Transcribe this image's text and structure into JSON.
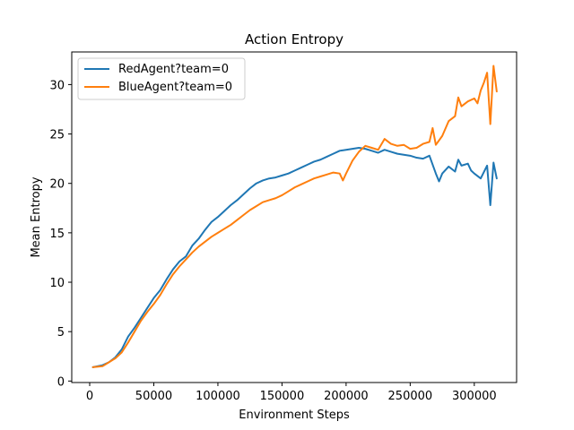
{
  "chart_data": {
    "type": "line",
    "title": "Action Entropy",
    "xlabel": "Environment Steps",
    "ylabel": "Mean Entropy",
    "xlim": [
      -14000,
      333000
    ],
    "ylim": [
      -0.15,
      33.3
    ],
    "xticks": [
      0,
      50000,
      100000,
      150000,
      200000,
      250000,
      300000
    ],
    "yticks": [
      0,
      5,
      10,
      15,
      20,
      25,
      30
    ],
    "grid": false,
    "legend_position": "upper-left",
    "series": [
      {
        "name": "RedAgent?team=0",
        "color": "#1f77b4",
        "x": [
          2500,
          10000,
          15000,
          20000,
          25000,
          30000,
          35000,
          40000,
          45000,
          50000,
          55000,
          60000,
          65000,
          70000,
          75000,
          80000,
          85000,
          90000,
          95000,
          100000,
          105000,
          110000,
          115000,
          120000,
          125000,
          130000,
          135000,
          140000,
          145000,
          150000,
          155000,
          160000,
          165000,
          170000,
          175000,
          180000,
          185000,
          190000,
          195000,
          200000,
          205000,
          210000,
          215000,
          220000,
          225000,
          230000,
          235000,
          240000,
          245000,
          250000,
          255000,
          260000,
          265000,
          270000,
          272500,
          275000,
          280000,
          285000,
          287500,
          290000,
          295000,
          297500,
          300000,
          305000,
          310000,
          312500,
          315000,
          317500
        ],
        "y": [
          1.4,
          1.6,
          1.9,
          2.4,
          3.2,
          4.5,
          5.4,
          6.4,
          7.4,
          8.4,
          9.2,
          10.3,
          11.3,
          12.1,
          12.6,
          13.7,
          14.4,
          15.3,
          16.1,
          16.6,
          17.2,
          17.8,
          18.3,
          18.9,
          19.5,
          20.0,
          20.3,
          20.5,
          20.6,
          20.8,
          21.0,
          21.3,
          21.6,
          21.9,
          22.2,
          22.4,
          22.7,
          23.0,
          23.3,
          23.4,
          23.5,
          23.6,
          23.5,
          23.3,
          23.1,
          23.4,
          23.2,
          23.0,
          22.9,
          22.8,
          22.6,
          22.5,
          22.8,
          21.0,
          20.2,
          21.0,
          21.7,
          21.2,
          22.4,
          21.8,
          22.0,
          21.3,
          21.0,
          20.5,
          21.8,
          17.8,
          22.1,
          20.5
        ]
      },
      {
        "name": "BlueAgent?team=0",
        "color": "#ff7f0e",
        "x": [
          2500,
          10000,
          15000,
          20000,
          25000,
          30000,
          35000,
          40000,
          45000,
          50000,
          55000,
          60000,
          65000,
          70000,
          75000,
          80000,
          85000,
          90000,
          95000,
          100000,
          105000,
          110000,
          115000,
          120000,
          125000,
          130000,
          135000,
          140000,
          145000,
          150000,
          155000,
          160000,
          165000,
          170000,
          175000,
          180000,
          185000,
          190000,
          195000,
          197500,
          200000,
          205000,
          210000,
          215000,
          220000,
          225000,
          230000,
          235000,
          240000,
          245000,
          250000,
          255000,
          260000,
          265000,
          267500,
          270000,
          275000,
          280000,
          285000,
          287500,
          290000,
          295000,
          300000,
          302500,
          305000,
          307500,
          310000,
          312500,
          315000,
          317500
        ],
        "y": [
          1.4,
          1.5,
          1.9,
          2.3,
          2.9,
          3.9,
          5.0,
          6.1,
          7.0,
          7.8,
          8.7,
          9.8,
          10.8,
          11.6,
          12.3,
          13.0,
          13.6,
          14.1,
          14.6,
          15.0,
          15.4,
          15.8,
          16.3,
          16.8,
          17.3,
          17.7,
          18.1,
          18.3,
          18.5,
          18.8,
          19.2,
          19.6,
          19.9,
          20.2,
          20.5,
          20.7,
          20.9,
          21.1,
          21.0,
          20.3,
          21.0,
          22.3,
          23.2,
          23.8,
          23.6,
          23.4,
          24.5,
          24.0,
          23.8,
          23.9,
          23.5,
          23.6,
          24.0,
          24.2,
          25.6,
          23.9,
          24.8,
          26.3,
          26.8,
          28.7,
          27.8,
          28.3,
          28.6,
          28.1,
          29.4,
          30.2,
          31.2,
          26.0,
          31.9,
          29.3
        ]
      }
    ]
  }
}
